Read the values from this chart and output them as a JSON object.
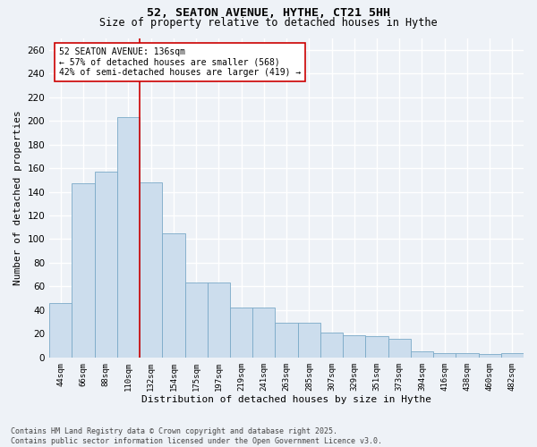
{
  "title1": "52, SEATON AVENUE, HYTHE, CT21 5HH",
  "title2": "Size of property relative to detached houses in Hythe",
  "xlabel": "Distribution of detached houses by size in Hythe",
  "ylabel": "Number of detached properties",
  "bar_color": "#ccdded",
  "bar_edge_color": "#7aaac8",
  "categories": [
    "44sqm",
    "66sqm",
    "88sqm",
    "110sqm",
    "132sqm",
    "154sqm",
    "175sqm",
    "197sqm",
    "219sqm",
    "241sqm",
    "263sqm",
    "285sqm",
    "307sqm",
    "329sqm",
    "351sqm",
    "373sqm",
    "394sqm",
    "416sqm",
    "438sqm",
    "460sqm",
    "482sqm"
  ],
  "values": [
    46,
    147,
    157,
    203,
    148,
    105,
    63,
    63,
    42,
    42,
    29,
    29,
    21,
    19,
    18,
    16,
    5,
    4,
    4,
    3,
    4
  ],
  "ylim": [
    0,
    270
  ],
  "yticks": [
    0,
    20,
    40,
    60,
    80,
    100,
    120,
    140,
    160,
    180,
    200,
    220,
    240,
    260
  ],
  "vline_x": 3.5,
  "vline_color": "#cc0000",
  "annotation_text": "52 SEATON AVENUE: 136sqm\n← 57% of detached houses are smaller (568)\n42% of semi-detached houses are larger (419) →",
  "annotation_box_color": "#ffffff",
  "annotation_box_edge": "#cc0000",
  "footer1": "Contains HM Land Registry data © Crown copyright and database right 2025.",
  "footer2": "Contains public sector information licensed under the Open Government Licence v3.0.",
  "background_color": "#eef2f7",
  "grid_color": "#ffffff"
}
